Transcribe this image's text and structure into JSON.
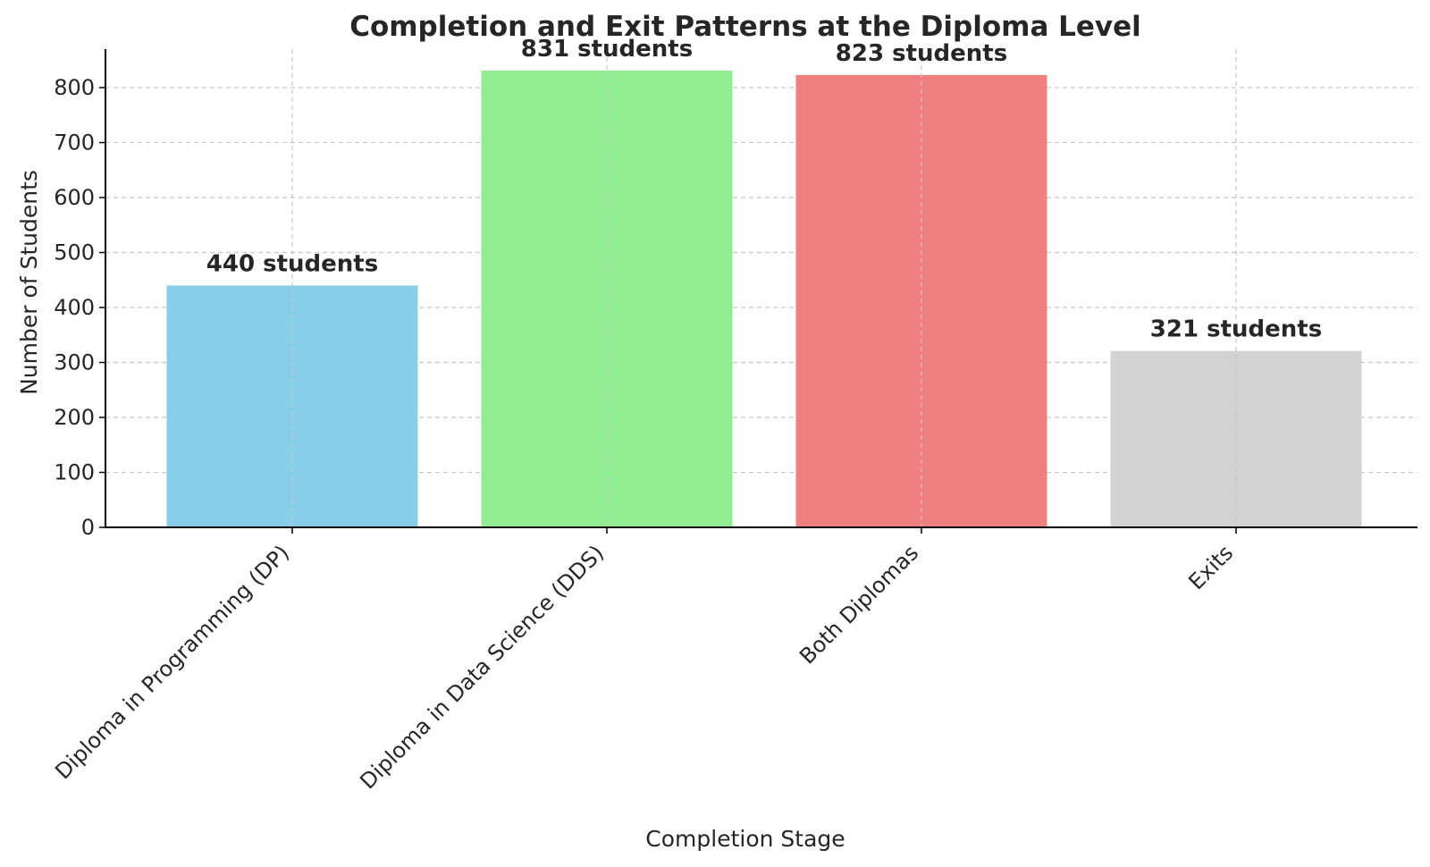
{
  "chart_data": {
    "type": "bar",
    "title": "Completion and Exit Patterns at the Diploma Level",
    "xlabel": "Completion Stage",
    "ylabel": "Number of Students",
    "categories": [
      "Diploma in Programming (DP)",
      "Diploma in Data Science (DDS)",
      "Both Diplomas",
      "Exits"
    ],
    "values": [
      440,
      831,
      823,
      321
    ],
    "data_labels": [
      "440 students",
      "831 students",
      "823 students",
      "321 students"
    ],
    "colors": [
      "#87ceeb",
      "#90ee90",
      "#f08080",
      "#d3d3d3"
    ],
    "ylim": [
      0,
      870
    ],
    "yticks": [
      0,
      100,
      200,
      300,
      400,
      500,
      600,
      700,
      800
    ],
    "grid": true
  }
}
